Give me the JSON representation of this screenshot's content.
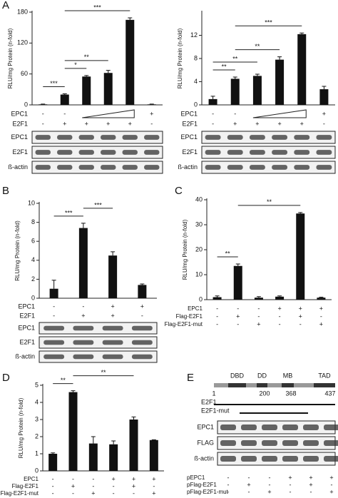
{
  "chart_data": [
    {
      "type": "bar",
      "panel": "A",
      "ylabel": "RLU/mg Protein (n-fold)",
      "ylim": [
        0,
        180
      ],
      "yticks": [
        0,
        60,
        120,
        180
      ],
      "color": "#111111",
      "values": [
        1,
        20,
        55,
        62,
        165,
        1
      ],
      "errors": [
        0.5,
        1.5,
        2,
        5,
        4,
        0.5
      ],
      "annotations": [
        {
          "text": "***",
          "from": 0,
          "to": 1
        },
        {
          "text": "*",
          "from": 1,
          "to": 2
        },
        {
          "text": "**",
          "from": 1,
          "to": 3
        },
        {
          "text": "***",
          "from": 1,
          "to": 4
        }
      ],
      "rows": [
        {
          "name": "EPC1",
          "marks": [
            "-",
            "-",
            null,
            null,
            null,
            "+"
          ]
        },
        {
          "name": "E2F1",
          "marks": [
            "-",
            "+",
            "+",
            "+",
            "+",
            "-"
          ]
        }
      ],
      "blots": [
        "EPC1",
        "E2F1",
        "ß-actin"
      ]
    },
    {
      "type": "bar",
      "panel": "",
      "ylabel": "RLU/mg Protein (n-fold)",
      "ylim": [
        0,
        16
      ],
      "yticks": [
        0,
        4,
        8,
        12
      ],
      "color": "#111111",
      "values": [
        1,
        4.5,
        5,
        7.8,
        12.2,
        2.7
      ],
      "errors": [
        0.5,
        0.3,
        0.3,
        0.5,
        0.2,
        0.5
      ],
      "annotations": [
        {
          "text": "**",
          "from": 0,
          "to": 1
        },
        {
          "text": "**",
          "from": 0,
          "to": 2
        },
        {
          "text": "**",
          "from": 1,
          "to": 3
        },
        {
          "text": "***",
          "from": 1,
          "to": 4
        }
      ],
      "rows": [
        {
          "name": "EPC1",
          "marks": [
            "-",
            "-",
            null,
            null,
            null,
            "+"
          ]
        },
        {
          "name": "E2F1",
          "marks": [
            "-",
            "+",
            "+",
            "+",
            "+",
            "-"
          ]
        }
      ],
      "blots": [
        "EPC1",
        "E2F1",
        "ß-actin"
      ]
    },
    {
      "type": "bar",
      "panel": "B",
      "ylabel": "RLU/mg Protein (n-fold)",
      "ylim": [
        0,
        10
      ],
      "yticks": [
        0,
        2,
        4,
        6,
        8,
        10
      ],
      "color": "#111111",
      "values": [
        1,
        7.4,
        4.5,
        1.4
      ],
      "errors": [
        0.9,
        0.5,
        0.4,
        0.1
      ],
      "annotations": [
        {
          "text": "***",
          "from": 0,
          "to": 1
        },
        {
          "text": "***",
          "from": 1,
          "to": 2
        }
      ],
      "rows": [
        {
          "name": "EPC1",
          "marks": [
            "-",
            "-",
            "+",
            "+"
          ]
        },
        {
          "name": "E2F1",
          "marks": [
            "-",
            "+",
            "+",
            "-"
          ]
        }
      ],
      "blots": [
        "EPC1",
        "E2F1",
        "ß-actin"
      ]
    },
    {
      "type": "bar",
      "panel": "C",
      "ylabel": "RLU/mg Protein (n-fold)",
      "ylim": [
        0,
        40
      ],
      "yticks": [
        0,
        10,
        20,
        30,
        40
      ],
      "color": "#111111",
      "values": [
        1,
        13.5,
        0.8,
        1.2,
        34.5,
        0.8
      ],
      "errors": [
        0.5,
        0.8,
        0.4,
        0.3,
        0.4,
        0.2
      ],
      "annotations": [
        {
          "text": "**",
          "from": 0,
          "to": 1
        },
        {
          "text": "**",
          "from": 1,
          "to": 4
        }
      ],
      "rows": [
        {
          "name": "EPC1",
          "marks": [
            "-",
            "-",
            "-",
            "+",
            "+",
            "+"
          ]
        },
        {
          "name": "Flag-E2F1",
          "marks": [
            "-",
            "+",
            "-",
            "-",
            "+",
            "-"
          ]
        },
        {
          "name": "Flag-E2F1-mut",
          "marks": [
            "-",
            "-",
            "+",
            "-",
            "-",
            "+"
          ]
        }
      ],
      "blots": []
    },
    {
      "type": "bar",
      "panel": "D",
      "ylabel": "RLU/mg Protein (n-fold)",
      "ylim": [
        0,
        5
      ],
      "yticks": [
        0,
        1,
        2,
        3,
        4,
        5
      ],
      "color": "#111111",
      "values": [
        1,
        4.6,
        1.6,
        1.55,
        3.0,
        1.8
      ],
      "errors": [
        0.05,
        0.08,
        0.4,
        0.2,
        0.15,
        0.02
      ],
      "annotations": [
        {
          "text": "**",
          "from": 0,
          "to": 1
        },
        {
          "text": "**",
          "from": 1,
          "to": 4
        }
      ],
      "rows": [
        {
          "name": "EPC1",
          "marks": [
            "-",
            "-",
            "-",
            "+",
            "+",
            "+"
          ]
        },
        {
          "name": "Flag-E2F1",
          "marks": [
            "-",
            "+",
            "-",
            "-",
            "+",
            "-"
          ]
        },
        {
          "name": "Flag-E2F1-mut",
          "marks": [
            "-",
            "-",
            "+",
            "-",
            "-",
            "+"
          ]
        }
      ],
      "blots": []
    }
  ],
  "panel_e": {
    "panel": "E",
    "domains": [
      "DBD",
      "DD",
      "MB",
      "TAD"
    ],
    "positions": [
      1,
      200,
      368,
      437
    ],
    "constructs": [
      "E2F1",
      "E2F1-mut"
    ],
    "blots": [
      "EPC1",
      "FLAG",
      "ß-actin"
    ],
    "rows": [
      {
        "name": "pEPC1",
        "marks": [
          "-",
          "-",
          "-",
          "+",
          "+",
          "+"
        ]
      },
      {
        "name": "pFlag-E2F1",
        "marks": [
          "-",
          "+",
          "-",
          "-",
          "+",
          "-"
        ]
      },
      {
        "name": "pFlag-E2F1-mut",
        "marks": [
          "-",
          "-",
          "+",
          "-",
          "-",
          "+"
        ]
      }
    ]
  }
}
